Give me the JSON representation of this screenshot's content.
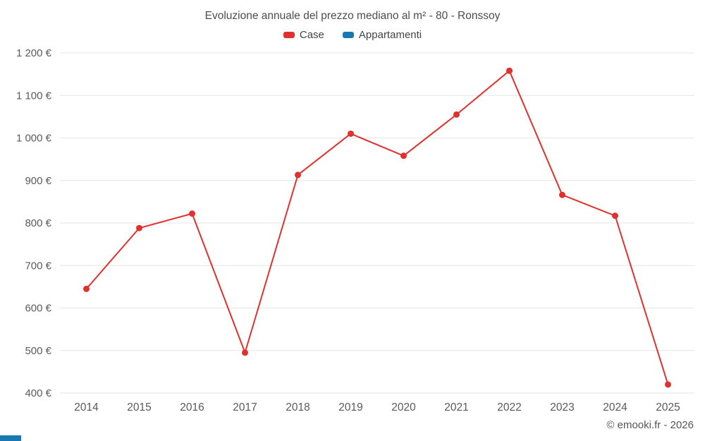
{
  "chart_data": {
    "type": "line",
    "title": "Evoluzione annuale del prezzo mediano al m² - 80 - Ronssoy",
    "categories": [
      "2014",
      "2015",
      "2016",
      "2017",
      "2018",
      "2019",
      "2020",
      "2021",
      "2022",
      "2023",
      "2024",
      "2025"
    ],
    "series": [
      {
        "name": "Case",
        "color": "#e0312e",
        "values": [
          645,
          788,
          822,
          495,
          913,
          1010,
          958,
          1055,
          1158,
          866,
          817,
          420
        ]
      },
      {
        "name": "Appartamenti",
        "color": "#1878af",
        "values": []
      }
    ],
    "xlabel": "",
    "ylabel": "",
    "ylim": [
      400,
      1200
    ],
    "y_ticks": [
      {
        "value": 400,
        "label": "400 €"
      },
      {
        "value": 500,
        "label": "500 €"
      },
      {
        "value": 600,
        "label": "600 €"
      },
      {
        "value": 700,
        "label": "700 €"
      },
      {
        "value": 800,
        "label": "800 €"
      },
      {
        "value": 900,
        "label": "900 €"
      },
      {
        "value": 1000,
        "label": "1 000 €"
      },
      {
        "value": 1100,
        "label": "1 100 €"
      },
      {
        "value": 1200,
        "label": "1 200 €"
      }
    ],
    "grid": "horizontal",
    "legend_position": "top",
    "grid_color": "#e6e6e6",
    "tick_color": "#5a5a5a"
  },
  "footer": {
    "watermark": "© emooki.fr - 2026"
  }
}
